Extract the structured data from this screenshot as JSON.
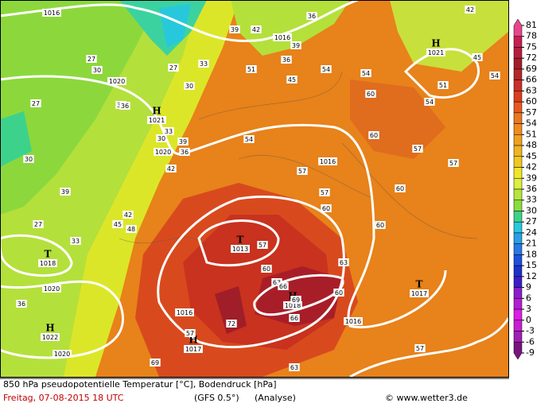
{
  "map": {
    "pressure_centers": [
      {
        "symbol": "H",
        "value": 1021
      },
      {
        "symbol": "H",
        "value": 1021
      },
      {
        "symbol": "T",
        "value": 1013
      },
      {
        "symbol": "T",
        "value": 1018
      },
      {
        "symbol": "H",
        "value": 1018
      },
      {
        "symbol": "T",
        "value": 1017
      },
      {
        "symbol": "H",
        "value": 1022
      },
      {
        "symbol": "H",
        "value": 1017
      }
    ],
    "isobar_labels": [
      1016,
      1016,
      1020,
      1020,
      1016,
      1020,
      1016,
      1016,
      1020
    ],
    "temperature_labels": [
      27,
      27,
      27,
      27,
      30,
      30,
      30,
      30,
      33,
      33,
      33,
      33,
      36,
      36,
      36,
      36,
      36,
      39,
      39,
      39,
      39,
      42,
      42,
      42,
      42,
      45,
      45,
      45,
      48,
      51,
      51,
      54,
      54,
      54,
      54,
      54,
      57,
      57,
      57,
      57,
      57,
      57,
      57,
      60,
      60,
      60,
      60,
      60,
      60,
      60,
      63,
      63,
      63,
      66,
      66,
      69,
      69,
      72
    ]
  },
  "colorbar": {
    "levels": [
      81,
      78,
      75,
      72,
      69,
      66,
      63,
      60,
      57,
      54,
      51,
      48,
      45,
      42,
      39,
      36,
      33,
      30,
      27,
      24,
      21,
      18,
      15,
      12,
      9,
      6,
      3,
      0,
      -3,
      -6,
      -9
    ],
    "colors": [
      "#e8468c",
      "#c81e50",
      "#b41e3c",
      "#a01e28",
      "#b42828",
      "#c83228",
      "#dc3c1e",
      "#e65a1e",
      "#ec781e",
      "#f08c1e",
      "#f0a01e",
      "#f0b41e",
      "#f0c81e",
      "#f0e628",
      "#dcf03c",
      "#b4e63c",
      "#8cdc3c",
      "#3cd28c",
      "#28c8dc",
      "#28a0e6",
      "#2878e6",
      "#1e50dc",
      "#1e32c8",
      "#3c1ec8",
      "#8c1ec8",
      "#b41ed2",
      "#dc1ee6",
      "#c81ed2",
      "#a01eb4",
      "#78147e"
    ]
  },
  "footer": {
    "title": "850 hPa pseudopotentielle Temperatur [°C], Bodendruck [hPa]",
    "date": "Freitag, 07-08-2015   18 UTC",
    "model": "(GFS 0.5°)",
    "run": "(Analyse)",
    "credit": "© www.wetter3.de"
  }
}
